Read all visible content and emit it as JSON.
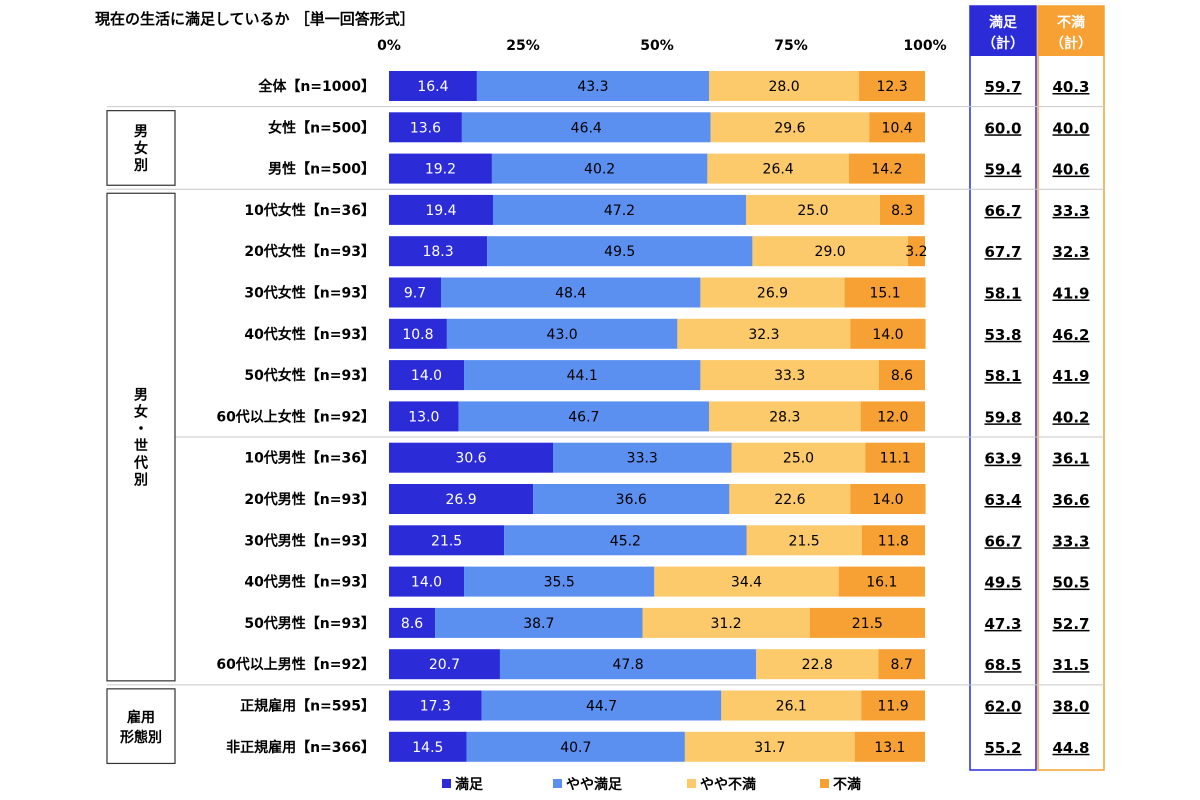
{
  "chart_data": {
    "type": "bar",
    "orientation": "horizontal-stacked-100",
    "title": "現在の生活に満足しているか ［単一回答形式］",
    "x_ticks": [
      "0%",
      "25%",
      "50%",
      "75%",
      "100%"
    ],
    "xlim": [
      0,
      100
    ],
    "legend_position": "bottom",
    "series": [
      {
        "name": "満足",
        "color": "#2b2bd8"
      },
      {
        "name": "やや満足",
        "color": "#5b8ff0"
      },
      {
        "name": "やや不満",
        "color": "#fcc96b"
      },
      {
        "name": "不満",
        "color": "#f7a033"
      }
    ],
    "summary_columns": [
      {
        "label_line1": "満足",
        "label_line2": "（計）",
        "color": "#2b2bd8"
      },
      {
        "label_line1": "不満",
        "label_line2": "（計）",
        "color": "#f7a033"
      }
    ],
    "groups": [
      {
        "label": "男女別",
        "rows": [
          1,
          2
        ]
      },
      {
        "label": "男女・世代別",
        "rows": [
          3,
          14
        ]
      },
      {
        "label": "雇用形態別",
        "rows": [
          15,
          16
        ],
        "label_lines": [
          "雇用",
          "形態別"
        ]
      }
    ],
    "rows": [
      {
        "label": "全体【n=1000】",
        "values": [
          16.4,
          43.3,
          28.0,
          12.3
        ],
        "labels": [
          "16.4",
          "43.3",
          "28.0",
          "12.3"
        ],
        "sums": [
          "59.7",
          "40.3"
        ]
      },
      {
        "label": "女性【n=500】",
        "values": [
          13.6,
          46.4,
          29.6,
          10.4
        ],
        "labels": [
          "13.6",
          "46.4",
          "29.6",
          "10.4"
        ],
        "sums": [
          "60.0",
          "40.0"
        ]
      },
      {
        "label": "男性【n=500】",
        "values": [
          19.2,
          40.2,
          26.4,
          14.2
        ],
        "labels": [
          "19.2",
          "40.2",
          "26.4",
          "14.2"
        ],
        "sums": [
          "59.4",
          "40.6"
        ]
      },
      {
        "label": "10代女性【n=36】",
        "values": [
          19.4,
          47.2,
          25.0,
          8.3
        ],
        "labels": [
          "19.4",
          "47.2",
          "25.0",
          "8.3"
        ],
        "sums": [
          "66.7",
          "33.3"
        ]
      },
      {
        "label": "20代女性【n=93】",
        "values": [
          18.3,
          49.5,
          29.0,
          3.2
        ],
        "labels": [
          "18.3",
          "49.5",
          "29.0",
          "3.2"
        ],
        "sums": [
          "67.7",
          "32.3"
        ]
      },
      {
        "label": "30代女性【n=93】",
        "values": [
          9.7,
          48.4,
          26.9,
          15.1
        ],
        "labels": [
          "9.7",
          "48.4",
          "26.9",
          "15.1"
        ],
        "sums": [
          "58.1",
          "41.9"
        ]
      },
      {
        "label": "40代女性【n=93】",
        "values": [
          10.8,
          43.0,
          32.3,
          14.0
        ],
        "labels": [
          "10.8",
          "43.0",
          "32.3",
          "14.0"
        ],
        "sums": [
          "53.8",
          "46.2"
        ]
      },
      {
        "label": "50代女性【n=93】",
        "values": [
          14.0,
          44.1,
          33.3,
          8.6
        ],
        "labels": [
          "14.0",
          "44.1",
          "33.3",
          "8.6"
        ],
        "sums": [
          "58.1",
          "41.9"
        ]
      },
      {
        "label": "60代以上女性【n=92】",
        "values": [
          13.0,
          46.7,
          28.3,
          12.0
        ],
        "labels": [
          "13.0",
          "46.7",
          "28.3",
          "12.0"
        ],
        "sums": [
          "59.8",
          "40.2"
        ]
      },
      {
        "label": "10代男性【n=36】",
        "values": [
          30.6,
          33.3,
          25.0,
          11.1
        ],
        "labels": [
          "30.6",
          "33.3",
          "25.0",
          "11.1"
        ],
        "sums": [
          "63.9",
          "36.1"
        ]
      },
      {
        "label": "20代男性【n=93】",
        "values": [
          26.9,
          36.6,
          22.6,
          14.0
        ],
        "labels": [
          "26.9",
          "36.6",
          "22.6",
          "14.0"
        ],
        "sums": [
          "63.4",
          "36.6"
        ]
      },
      {
        "label": "30代男性【n=93】",
        "values": [
          21.5,
          45.2,
          21.5,
          11.8
        ],
        "labels": [
          "21.5",
          "45.2",
          "21.5",
          "11.8"
        ],
        "sums": [
          "66.7",
          "33.3"
        ]
      },
      {
        "label": "40代男性【n=93】",
        "values": [
          14.0,
          35.5,
          34.4,
          16.1
        ],
        "labels": [
          "14.0",
          "35.5",
          "34.4",
          "16.1"
        ],
        "sums": [
          "49.5",
          "50.5"
        ]
      },
      {
        "label": "50代男性【n=93】",
        "values": [
          8.6,
          38.7,
          31.2,
          21.5
        ],
        "labels": [
          "8.6",
          "38.7",
          "31.2",
          "21.5"
        ],
        "sums": [
          "47.3",
          "52.7"
        ]
      },
      {
        "label": "60代以上男性【n=92】",
        "values": [
          20.7,
          47.8,
          22.8,
          8.7
        ],
        "labels": [
          "20.7",
          "47.8",
          "22.8",
          "8.7"
        ],
        "sums": [
          "68.5",
          "31.5"
        ]
      },
      {
        "label": "正規雇用【n=595】",
        "values": [
          17.3,
          44.7,
          26.1,
          11.9
        ],
        "labels": [
          "17.3",
          "44.7",
          "26.1",
          "11.9"
        ],
        "sums": [
          "62.0",
          "38.0"
        ]
      },
      {
        "label": "非正規雇用【n=366】",
        "values": [
          14.5,
          40.7,
          31.7,
          13.1
        ],
        "labels": [
          "14.5",
          "40.7",
          "31.7",
          "13.1"
        ],
        "sums": [
          "55.2",
          "44.8"
        ]
      }
    ]
  }
}
